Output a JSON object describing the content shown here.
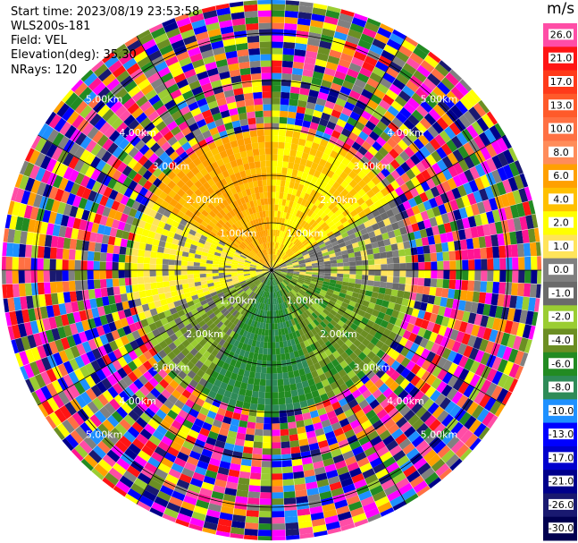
{
  "info": {
    "start_time": "Start time: 2023/08/19 23:53:58",
    "instrument": "WLS200s-181",
    "field": "Field: VEL",
    "elevation": "Elevation(deg): 35.30",
    "nrays": "NRays: 120"
  },
  "colorbar": {
    "unit": "m/s",
    "ticks": [
      "26.0",
      "21.0",
      "17.0",
      "13.0",
      "10.0",
      "8.0",
      "6.0",
      "4.0",
      "2.0",
      "1.0",
      "0.0",
      "-1.0",
      "-2.0",
      "-4.0",
      "-6.0",
      "-8.0",
      "-10.0",
      "-13.0",
      "-17.0",
      "-21.0",
      "-26.0",
      "-30.0"
    ],
    "colors": [
      "#ff4da6",
      "#ff1414",
      "#ff3a1a",
      "#ff5a2a",
      "#ff7043",
      "#ff8c5a",
      "#ffa000",
      "#ffc000",
      "#ffff00",
      "#ffe45a",
      "#808080",
      "#6a6a6a",
      "#9acd32",
      "#6b8e23",
      "#228b22",
      "#2e8b57",
      "#1e90ff",
      "#0000ff",
      "#0000cd",
      "#00008b",
      "#191970",
      "#000050"
    ]
  },
  "range_labels": [
    "1.00km",
    "2.00km",
    "3.00km",
    "4.00km",
    "5.00km"
  ],
  "chart_data": {
    "type": "heatmap",
    "title": "",
    "field": "VEL",
    "units": "m/s",
    "nrays": 120,
    "elevation_deg": 35.3,
    "range_rings_km": [
      1.0,
      2.0,
      3.0,
      4.0,
      5.0
    ],
    "max_range_km": 5.7,
    "clim": [
      -30.0,
      26.0
    ],
    "coherent_range_km": 2.85,
    "sectors": [
      {
        "azimuth_from": 300,
        "azimuth_to": 360,
        "dominant_ms": 6.0
      },
      {
        "azimuth_from": 0,
        "azimuth_to": 60,
        "dominant_ms": 4.0
      },
      {
        "azimuth_from": 60,
        "azimuth_to": 100,
        "dominant_ms": 0.0
      },
      {
        "azimuth_from": 100,
        "azimuth_to": 160,
        "dominant_ms": -3.0
      },
      {
        "azimuth_from": 160,
        "azimuth_to": 210,
        "dominant_ms": -6.0
      },
      {
        "azimuth_from": 210,
        "azimuth_to": 250,
        "dominant_ms": -2.0
      },
      {
        "azimuth_from": 250,
        "azimuth_to": 300,
        "dominant_ms": 2.0
      }
    ],
    "beyond_coherent_range": "noise"
  }
}
